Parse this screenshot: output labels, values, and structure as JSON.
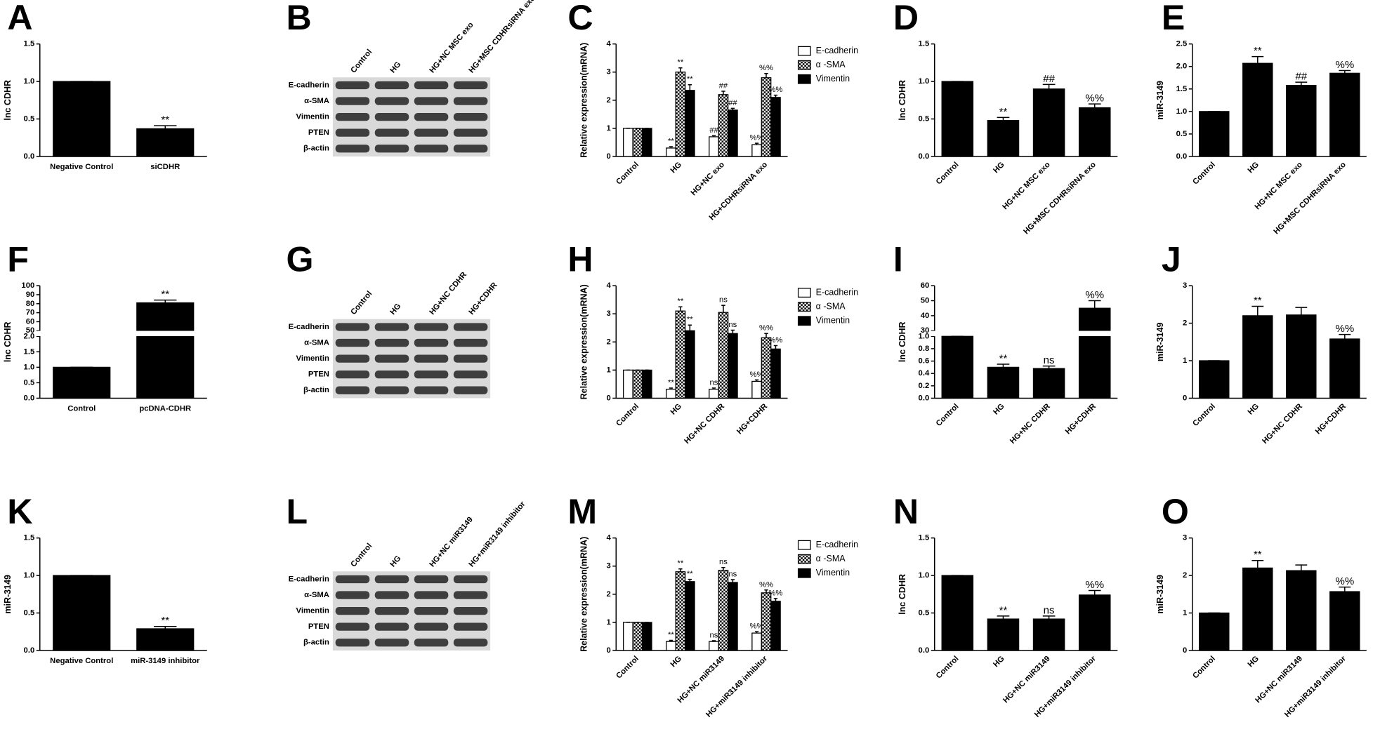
{
  "chart_data": [
    {
      "panel": "A",
      "type": "bar",
      "ylabel": "lnc CDHR",
      "categories": [
        "Negative Control",
        "siCDHR"
      ],
      "values": [
        1.0,
        0.37
      ],
      "errors": [
        0,
        0.04
      ],
      "annotations": [
        null,
        "**"
      ],
      "color": "#000000",
      "ylim": [
        0,
        1.5
      ],
      "yticks": [
        {
          "value": 0,
          "label": "0.0"
        },
        {
          "value": 0.5,
          "label": "0.5"
        },
        {
          "value": 1,
          "label": "1.0"
        },
        {
          "value": 1.5,
          "label": "1.5"
        }
      ]
    },
    {
      "panel": "B",
      "type": "blot",
      "lanes": [
        "Control",
        "HG",
        "HG+NC MSC exo",
        "HG+MSC CDHRsiRNA exo"
      ],
      "proteins": [
        "E-cadherin",
        "α-SMA",
        "Vimentin",
        "PTEN",
        "β-actin"
      ]
    },
    {
      "panel": "C",
      "type": "grouped_bar",
      "ylabel": "Relative expression(mRNA)",
      "categories": [
        "Control",
        "HG",
        "HG+NC exo",
        "HG+CDHRsiRNA exo"
      ],
      "ylim": [
        0,
        4
      ],
      "yticks": [
        0,
        1,
        2,
        3,
        4
      ],
      "series": [
        {
          "name": "E-cadherin",
          "color": "#ffffff",
          "values": [
            1,
            0.3,
            0.7,
            0.42
          ],
          "errors": [
            0,
            0.05,
            0.04,
            0.05
          ],
          "annotations": [
            null,
            "**",
            "##",
            "%%"
          ]
        },
        {
          "name": "α -SMA",
          "color": "#000000",
          "pattern": "checker",
          "values": [
            1,
            3.0,
            2.2,
            2.8
          ],
          "errors": [
            0,
            0.15,
            0.12,
            0.15
          ],
          "annotations": [
            null,
            "**",
            "##",
            "%%"
          ]
        },
        {
          "name": "Vimentin",
          "color": "#000000",
          "values": [
            1,
            2.35,
            1.65,
            2.1
          ],
          "errors": [
            0,
            0.2,
            0.06,
            0.08
          ],
          "annotations": [
            null,
            "**",
            "##",
            "%%"
          ]
        }
      ]
    },
    {
      "panel": "D",
      "type": "bar",
      "ylabel": "lnc CDHR",
      "categories": [
        "Control",
        "HG",
        "HG+NC MSC exo",
        "HG+MSC CDHRsiRNA exo"
      ],
      "values": [
        1.0,
        0.48,
        0.9,
        0.65
      ],
      "errors": [
        0,
        0.04,
        0.06,
        0.05
      ],
      "annotations": [
        null,
        "**",
        "##",
        "%%"
      ],
      "color": "#000000",
      "ylim": [
        0,
        1.5
      ],
      "yticks": [
        {
          "value": 0,
          "label": "0.0"
        },
        {
          "value": 0.5,
          "label": "0.5"
        },
        {
          "value": 1,
          "label": "1.0"
        },
        {
          "value": 1.5,
          "label": "1.5"
        }
      ]
    },
    {
      "panel": "E",
      "type": "bar",
      "ylabel": "miR-3149",
      "categories": [
        "Control",
        "HG",
        "HG+NC MSC exo",
        "HG+MSC CDHRsiRNA exo"
      ],
      "values": [
        1.0,
        2.07,
        1.58,
        1.85
      ],
      "errors": [
        0,
        0.15,
        0.07,
        0.06
      ],
      "annotations": [
        null,
        "**",
        "##",
        "%%"
      ],
      "color": "#000000",
      "ylim": [
        0,
        2.5
      ],
      "yticks": [
        {
          "value": 0,
          "label": "0.0"
        },
        {
          "value": 0.5,
          "label": "0.5"
        },
        {
          "value": 1,
          "label": "1.0"
        },
        {
          "value": 1.5,
          "label": "1.5"
        },
        {
          "value": 2,
          "label": "2.0"
        },
        {
          "value": 2.5,
          "label": "2.5"
        }
      ]
    },
    {
      "panel": "F",
      "type": "bar",
      "ylabel": "lnc CDHR",
      "categories": [
        "Control",
        "pcDNA-CDHR"
      ],
      "values": [
        1.0,
        81
      ],
      "errors": [
        0,
        3
      ],
      "annotations": [
        null,
        "**"
      ],
      "color": "#000000",
      "ylim": [
        0,
        100
      ],
      "ybreak": [
        2,
        50
      ],
      "yticks": [
        {
          "value": 0,
          "label": "0.0"
        },
        {
          "value": 0.5,
          "label": "0.5"
        },
        {
          "value": 1,
          "label": "1.0"
        },
        {
          "value": 1.5,
          "label": "1.5"
        },
        {
          "value": 2,
          "label": "2.0"
        },
        50,
        60,
        70,
        80,
        90,
        100
      ]
    },
    {
      "panel": "G",
      "type": "blot",
      "lanes": [
        "Control",
        "HG",
        "HG+NC CDHR",
        "HG+CDHR"
      ],
      "proteins": [
        "E-cadherin",
        "α-SMA",
        "Vimentin",
        "PTEN",
        "β-actin"
      ]
    },
    {
      "panel": "H",
      "type": "grouped_bar",
      "ylabel": "Relative expression(mRNA)",
      "categories": [
        "Control",
        "HG",
        "HG+NC CDHR",
        "HG+CDHR"
      ],
      "ylim": [
        0,
        4
      ],
      "yticks": [
        0,
        1,
        2,
        3,
        4
      ],
      "series": [
        {
          "name": "E-cadherin",
          "color": "#ffffff",
          "values": [
            1,
            0.32,
            0.32,
            0.6
          ],
          "errors": [
            0,
            0.04,
            0.04,
            0.05
          ],
          "annotations": [
            null,
            "**",
            "ns",
            "%%"
          ]
        },
        {
          "name": "α -SMA",
          "color": "#000000",
          "pattern": "checker",
          "values": [
            1,
            3.1,
            3.05,
            2.15
          ],
          "errors": [
            0,
            0.15,
            0.25,
            0.15
          ],
          "annotations": [
            null,
            "**",
            "ns",
            "%%"
          ]
        },
        {
          "name": "Vimentin",
          "color": "#000000",
          "values": [
            1,
            2.4,
            2.3,
            1.75
          ],
          "errors": [
            0,
            0.2,
            0.12,
            0.12
          ],
          "annotations": [
            null,
            "**",
            "ns",
            "%%"
          ]
        }
      ]
    },
    {
      "panel": "I",
      "type": "bar",
      "ylabel": "lnc CDHR",
      "categories": [
        "Control",
        "HG",
        "HG+NC CDHR",
        "HG+CDHR"
      ],
      "values": [
        1.0,
        0.5,
        0.48,
        45
      ],
      "errors": [
        0,
        0.05,
        0.04,
        5
      ],
      "annotations": [
        null,
        "**",
        "ns",
        "%%"
      ],
      "color": "#000000",
      "ylim": [
        0,
        60
      ],
      "ybreak": [
        1,
        30
      ],
      "yticks": [
        {
          "value": 0,
          "label": "0.0"
        },
        {
          "value": 0.2,
          "label": "0.2"
        },
        {
          "value": 0.4,
          "label": "0.4"
        },
        {
          "value": 0.6,
          "label": "0.6"
        },
        {
          "value": 0.8,
          "label": "0.8"
        },
        {
          "value": 1,
          "label": "1.0"
        },
        30,
        40,
        50,
        60
      ]
    },
    {
      "panel": "J",
      "type": "bar",
      "ylabel": "miR-3149",
      "categories": [
        "Control",
        "HG",
        "HG+NC CDHR",
        "HG+CDHR"
      ],
      "values": [
        1.0,
        2.2,
        2.22,
        1.58
      ],
      "errors": [
        0,
        0.25,
        0.2,
        0.12
      ],
      "annotations": [
        null,
        "**",
        null,
        "%%"
      ],
      "color": "#000000",
      "ylim": [
        0,
        3
      ],
      "yticks": [
        0,
        1,
        2,
        3
      ]
    },
    {
      "panel": "K",
      "type": "bar",
      "ylabel": "miR-3149",
      "categories": [
        "Negative Control",
        "miR-3149 inhibitor"
      ],
      "values": [
        1.0,
        0.29
      ],
      "errors": [
        0,
        0.03
      ],
      "annotations": [
        null,
        "**"
      ],
      "color": "#000000",
      "ylim": [
        0,
        1.5
      ],
      "yticks": [
        {
          "value": 0,
          "label": "0.0"
        },
        {
          "value": 0.5,
          "label": "0.5"
        },
        {
          "value": 1,
          "label": "1.0"
        },
        {
          "value": 1.5,
          "label": "1.5"
        }
      ]
    },
    {
      "panel": "L",
      "type": "blot",
      "lanes": [
        "Control",
        "HG",
        "HG+NC miR3149",
        "HG+miR3149 inhibitor"
      ],
      "proteins": [
        "E-cadherin",
        "α-SMA",
        "Vimentin",
        "PTEN",
        "β-actin"
      ]
    },
    {
      "panel": "M",
      "type": "grouped_bar",
      "ylabel": "Relative expression(mRNA)",
      "categories": [
        "Control",
        "HG",
        "HG+NC miR3149",
        "HG+miR3149 inhibitor"
      ],
      "ylim": [
        0,
        4
      ],
      "yticks": [
        0,
        1,
        2,
        3,
        4
      ],
      "series": [
        {
          "name": "E-cadherin",
          "color": "#ffffff",
          "values": [
            1,
            0.32,
            0.32,
            0.62
          ],
          "errors": [
            0,
            0.04,
            0.03,
            0.05
          ],
          "annotations": [
            null,
            "**",
            "ns",
            "%%"
          ]
        },
        {
          "name": "α -SMA",
          "color": "#000000",
          "pattern": "checker",
          "values": [
            1,
            2.8,
            2.85,
            2.05
          ],
          "errors": [
            0,
            0.1,
            0.1,
            0.1
          ],
          "annotations": [
            null,
            "**",
            "ns",
            "%%"
          ]
        },
        {
          "name": "Vimentin",
          "color": "#000000",
          "values": [
            1,
            2.45,
            2.42,
            1.75
          ],
          "errors": [
            0,
            0.08,
            0.1,
            0.1
          ],
          "annotations": [
            null,
            "**",
            "ns",
            "%%"
          ]
        }
      ]
    },
    {
      "panel": "N",
      "type": "bar",
      "ylabel": "lnc CDHR",
      "categories": [
        "Control",
        "HG",
        "HG+NC miR3149",
        "HG+miR3149 inhibitor"
      ],
      "values": [
        1.0,
        0.42,
        0.42,
        0.74
      ],
      "errors": [
        0,
        0.04,
        0.04,
        0.06
      ],
      "annotations": [
        null,
        "**",
        "ns",
        "%%"
      ],
      "color": "#000000",
      "ylim": [
        0,
        1.5
      ],
      "yticks": [
        {
          "value": 0,
          "label": "0.0"
        },
        {
          "value": 0.5,
          "label": "0.5"
        },
        {
          "value": 1,
          "label": "1.0"
        },
        {
          "value": 1.5,
          "label": "1.5"
        }
      ]
    },
    {
      "panel": "O",
      "type": "bar",
      "ylabel": "miR-3149",
      "categories": [
        "Control",
        "HG",
        "HG+NC miR3149",
        "HG+miR3149 inhibitor"
      ],
      "values": [
        1.0,
        2.2,
        2.13,
        1.57
      ],
      "errors": [
        0,
        0.2,
        0.15,
        0.12
      ],
      "annotations": [
        null,
        "**",
        null,
        "%%"
      ],
      "color": "#000000",
      "ylim": [
        0,
        3
      ],
      "yticks": [
        0,
        1,
        2,
        3
      ]
    }
  ]
}
